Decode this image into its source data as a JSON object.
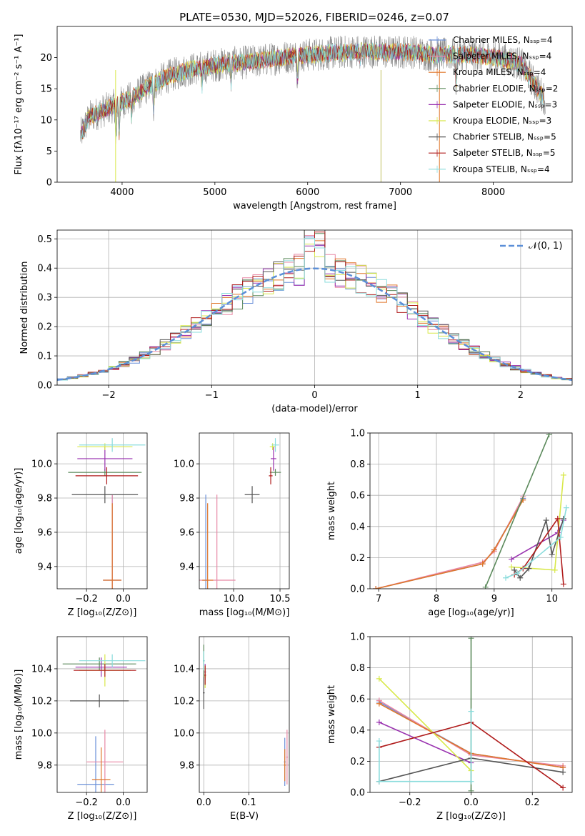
{
  "colors": [
    "#6a8fd8",
    "#e887a5",
    "#e0762a",
    "#5c8a5c",
    "#9a33b0",
    "#d8e84a",
    "#555555",
    "#b01c1c",
    "#8adcdc"
  ],
  "chart_data": [
    {
      "id": "spectrum",
      "type": "line",
      "title": "PLATE=0530, MJD=52026, FIBERID=0246, z=0.07",
      "xlabel": "wavelength [Angstrom, rest frame]",
      "ylabel": "Flux [fλ10⁻¹⁷ erg cm⁻² s⁻¹ A⁻¹]",
      "xlim": [
        3300,
        8850
      ],
      "ylim": [
        0,
        25
      ],
      "xticks": [
        4000,
        5000,
        6000,
        7000,
        8000
      ],
      "yticks": [
        0,
        5,
        10,
        15,
        20
      ],
      "grid": false,
      "legend_position": "top-right",
      "legend": [
        "Chabrier MILES, Nₛₛₚ=4",
        "Salpeter MILES, Nₛₛₚ=4",
        "Kroupa MILES, Nₛₛₚ=4",
        "Chabrier ELODIE, Nₛₛₚ=2",
        "Salpeter ELODIE, Nₛₛₚ=3",
        "Kroupa ELODIE, Nₛₛₚ=3",
        "Chabrier STELIB, Nₛₛₚ=5",
        "Salpeter STELIB, Nₛₛₚ=5",
        "Kroupa STELIB, Nₛₛₚ=4"
      ],
      "x": [
        3550,
        3650,
        3800,
        3950,
        4100,
        4300,
        4500,
        4700,
        4900,
        5100,
        5300,
        5500,
        5700,
        5900,
        6100,
        6300,
        6500,
        6700,
        6900,
        7100,
        7300,
        7500,
        7700,
        7900,
        8100,
        8300,
        8550
      ],
      "y": [
        7.5,
        10.5,
        11.5,
        12.5,
        13.5,
        15.5,
        17.0,
        18.0,
        18.5,
        19.0,
        19.2,
        19.5,
        20.0,
        20.3,
        20.5,
        20.8,
        21.0,
        21.0,
        20.8,
        21.0,
        20.5,
        20.5,
        20.5,
        20.3,
        19.8,
        19.0,
        13.5
      ]
    },
    {
      "id": "residual_hist",
      "type": "histogram",
      "xlabel": "(data-model)/error",
      "ylabel": "Normed distribution",
      "xlim": [
        -2.5,
        2.5
      ],
      "ylim": [
        0,
        0.53
      ],
      "xticks": [
        -2,
        -1,
        0,
        1,
        2
      ],
      "yticks": [
        0.0,
        0.1,
        0.2,
        0.3,
        0.4,
        0.5
      ],
      "grid": true,
      "legend_position": "top-right",
      "curve_label": "𝒩(0, 1)",
      "bin_width": 0.1
    },
    {
      "id": "age_vs_Z",
      "type": "errorbar",
      "xlabel": "Z [log₁₀(Z/Z⊙)]",
      "ylabel": "age  [log₁₀(age/yr)]",
      "xlim": [
        -0.36,
        0.13
      ],
      "ylim": [
        9.27,
        10.18
      ],
      "xticks": [
        -0.2,
        0.0
      ],
      "yticks": [
        9.4,
        9.6,
        9.8,
        10.0
      ],
      "series": [
        {
          "x": -0.06,
          "y": 9.32,
          "xerr": 0.05,
          "yerr": 0.5
        },
        {
          "x": -0.06,
          "y": 9.32,
          "xerr": 0.05,
          "yerr": 0.5
        },
        {
          "x": -0.06,
          "y": 9.32,
          "xerr": 0.05,
          "yerr": 0.45
        },
        {
          "x": -0.1,
          "y": 9.95,
          "xerr": 0.2,
          "yerr": 0.02
        },
        {
          "x": -0.1,
          "y": 10.03,
          "xerr": 0.15,
          "yerr": 0.07
        },
        {
          "x": -0.1,
          "y": 10.1,
          "xerr": 0.15,
          "yerr": 0.02
        },
        {
          "x": -0.1,
          "y": 9.82,
          "xerr": 0.18,
          "yerr": 0.05
        },
        {
          "x": -0.09,
          "y": 9.93,
          "xerr": 0.17,
          "yerr": 0.05
        },
        {
          "x": -0.06,
          "y": 10.11,
          "xerr": 0.18,
          "yerr": 0.04
        }
      ]
    },
    {
      "id": "age_vs_mass",
      "type": "errorbar",
      "xlabel": "mass [log₁₀(M/M⊙)]",
      "ylabel": "",
      "xlim": [
        9.63,
        10.6
      ],
      "ylim": [
        9.27,
        10.18
      ],
      "xticks": [
        10.0,
        10.5
      ],
      "yticks": [
        9.4,
        9.6,
        9.8,
        10.0
      ],
      "series": [
        {
          "x": 9.7,
          "y": 9.32,
          "xerr": 0.03,
          "yerr": 0.5
        },
        {
          "x": 9.82,
          "y": 9.32,
          "xerr": 0.2,
          "yerr": 0.5
        },
        {
          "x": 9.72,
          "y": 9.32,
          "xerr": 0.06,
          "yerr": 0.45
        },
        {
          "x": 10.45,
          "y": 9.95,
          "xerr": 0.06,
          "yerr": 0.02
        },
        {
          "x": 10.43,
          "y": 10.03,
          "xerr": 0.03,
          "yerr": 0.07
        },
        {
          "x": 10.42,
          "y": 10.1,
          "xerr": 0.03,
          "yerr": 0.02
        },
        {
          "x": 10.2,
          "y": 9.82,
          "xerr": 0.08,
          "yerr": 0.05
        },
        {
          "x": 10.4,
          "y": 9.93,
          "xerr": 0.02,
          "yerr": 0.05
        },
        {
          "x": 10.45,
          "y": 10.11,
          "xerr": 0.04,
          "yerr": 0.04
        }
      ]
    },
    {
      "id": "mass_weight_vs_age",
      "type": "line",
      "xlabel": "age  [log₁₀(age/yr)]",
      "ylabel": "mass weight",
      "xlim": [
        6.85,
        10.35
      ],
      "ylim": [
        0,
        1
      ],
      "xticks": [
        7,
        8,
        9,
        10
      ],
      "yticks": [
        0.0,
        0.2,
        0.4,
        0.6,
        0.8,
        1.0
      ],
      "grid": true,
      "series": [
        {
          "x": [
            6.95,
            8.8,
            9.0,
            9.5
          ],
          "y": [
            0.0,
            0.16,
            0.25,
            0.58
          ]
        },
        {
          "x": [
            6.95,
            8.8,
            9.0,
            9.5
          ],
          "y": [
            0.0,
            0.17,
            0.24,
            0.59
          ]
        },
        {
          "x": [
            6.95,
            8.8,
            9.0,
            9.5
          ],
          "y": [
            0.0,
            0.16,
            0.25,
            0.57
          ]
        },
        {
          "x": [
            8.85,
            9.95
          ],
          "y": [
            0.01,
            0.99
          ]
        },
        {
          "x": [
            9.3,
            10.1,
            10.2
          ],
          "y": [
            0.19,
            0.36,
            0.44
          ]
        },
        {
          "x": [
            9.3,
            10.05,
            10.2
          ],
          "y": [
            0.14,
            0.12,
            0.73
          ]
        },
        {
          "x": [
            9.35,
            9.45,
            9.6,
            9.9,
            10.0,
            10.2
          ],
          "y": [
            0.12,
            0.07,
            0.13,
            0.44,
            0.22,
            0.45
          ]
        },
        {
          "x": [
            9.35,
            9.5,
            10.1,
            10.2
          ],
          "y": [
            0.09,
            0.13,
            0.45,
            0.03
          ]
        },
        {
          "x": [
            9.2,
            9.4,
            10.15,
            10.25
          ],
          "y": [
            0.07,
            0.1,
            0.33,
            0.52
          ]
        }
      ]
    },
    {
      "id": "mass_vs_Z",
      "type": "errorbar",
      "xlabel": "Z [log₁₀(Z/Z⊙)]",
      "ylabel": "mass [log₁₀(M/M⊙)]",
      "xlim": [
        -0.36,
        0.13
      ],
      "ylim": [
        9.63,
        10.6
      ],
      "xticks": [
        -0.2,
        0.0
      ],
      "yticks": [
        9.8,
        10.0,
        10.2,
        10.4
      ],
      "series": [
        {
          "x": -0.15,
          "y": 9.68,
          "xerr": 0.1,
          "yerr": 0.3
        },
        {
          "x": -0.1,
          "y": 9.82,
          "xerr": 0.1,
          "yerr": 0.2
        },
        {
          "x": -0.12,
          "y": 9.71,
          "xerr": 0.05,
          "yerr": 0.2
        },
        {
          "x": -0.13,
          "y": 10.43,
          "xerr": 0.2,
          "yerr": 0.04
        },
        {
          "x": -0.12,
          "y": 10.41,
          "xerr": 0.14,
          "yerr": 0.06
        },
        {
          "x": -0.1,
          "y": 10.39,
          "xerr": 0.14,
          "yerr": 0.1
        },
        {
          "x": -0.13,
          "y": 10.2,
          "xerr": 0.16,
          "yerr": 0.04
        },
        {
          "x": -0.1,
          "y": 10.39,
          "xerr": 0.17,
          "yerr": 0.04
        },
        {
          "x": -0.06,
          "y": 10.45,
          "xerr": 0.18,
          "yerr": 0.04
        }
      ]
    },
    {
      "id": "mass_vs_EBV",
      "type": "errorbar",
      "xlabel": "E(B-V)",
      "ylabel": "",
      "xlim": [
        -0.01,
        0.19
      ],
      "ylim": [
        9.63,
        10.6
      ],
      "xticks": [
        0.0,
        0.1
      ],
      "yticks": [
        9.8,
        10.0,
        10.2,
        10.4
      ],
      "series": [
        {
          "x": 0.18,
          "y": 9.82,
          "xerr": 0.002,
          "yerr": 0.15
        },
        {
          "x": 0.185,
          "y": 9.85,
          "xerr": 0.002,
          "yerr": 0.17
        },
        {
          "x": 0.18,
          "y": 9.8,
          "xerr": 0.002,
          "yerr": 0.1
        },
        {
          "x": 0.0,
          "y": 10.45,
          "xerr": 0.002,
          "yerr": 0.1
        },
        {
          "x": 0.003,
          "y": 10.38,
          "xerr": 0.002,
          "yerr": 0.05
        },
        {
          "x": 0.003,
          "y": 10.35,
          "xerr": 0.002,
          "yerr": 0.07
        },
        {
          "x": 0.0,
          "y": 10.25,
          "xerr": 0.002,
          "yerr": 0.1
        },
        {
          "x": 0.003,
          "y": 10.36,
          "xerr": 0.002,
          "yerr": 0.06
        },
        {
          "x": 0.0,
          "y": 10.45,
          "xerr": 0.002,
          "yerr": 0.06
        }
      ]
    },
    {
      "id": "mass_weight_vs_Z",
      "type": "line",
      "xlabel": "Z [log₁₀(Z/Z⊙)]",
      "ylabel": "mass weight",
      "xlim": [
        -0.33,
        0.33
      ],
      "ylim": [
        0,
        1
      ],
      "xticks": [
        -0.2,
        0.0,
        0.2
      ],
      "yticks": [
        0.0,
        0.2,
        0.4,
        0.6,
        0.8,
        1.0
      ],
      "grid": true,
      "series": [
        {
          "x": [
            -0.3,
            0.0,
            0.3
          ],
          "y": [
            0.58,
            0.25,
            0.16
          ]
        },
        {
          "x": [
            -0.3,
            0.0,
            0.3
          ],
          "y": [
            0.59,
            0.24,
            0.17
          ]
        },
        {
          "x": [
            -0.3,
            0.0,
            0.3
          ],
          "y": [
            0.57,
            0.25,
            0.16
          ]
        },
        {
          "x": [
            0.0,
            0.0
          ],
          "y": [
            0.01,
            0.99
          ]
        },
        {
          "x": [
            -0.3,
            0.0
          ],
          "y": [
            0.45,
            0.19
          ]
        },
        {
          "x": [
            -0.3,
            0.0
          ],
          "y": [
            0.73,
            0.14
          ]
        },
        {
          "x": [
            -0.3,
            0.0,
            0.3
          ],
          "y": [
            0.07,
            0.22,
            0.13
          ]
        },
        {
          "x": [
            -0.3,
            0.0,
            0.3
          ],
          "y": [
            0.29,
            0.45,
            0.03
          ]
        },
        {
          "x": [
            -0.3,
            -0.3,
            0.0,
            0.0
          ],
          "y": [
            0.33,
            0.07,
            0.07,
            0.52
          ]
        }
      ]
    }
  ]
}
